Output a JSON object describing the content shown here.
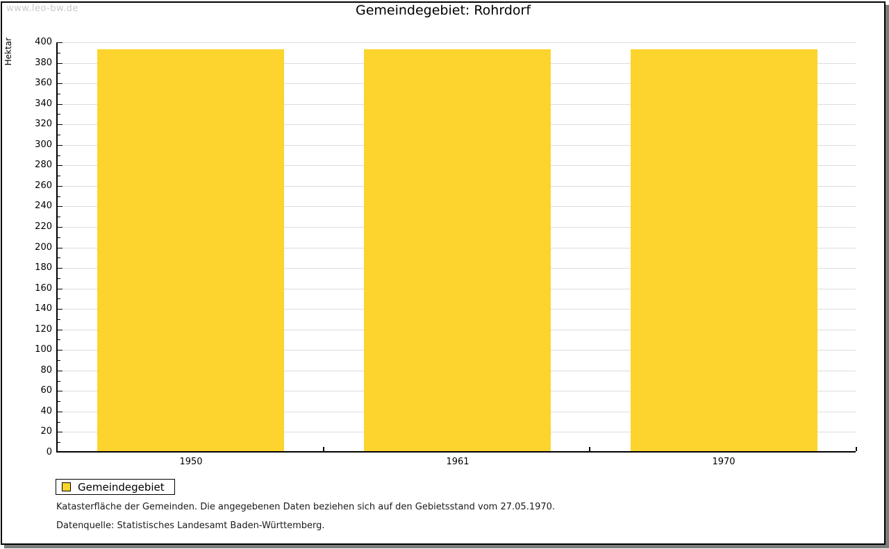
{
  "watermark": "www.leo-bw.de",
  "chart_data": {
    "type": "bar",
    "title": "Gemeindegebiet: Rohrdorf",
    "xlabel": "",
    "ylabel": "Hektar",
    "categories": [
      "1950",
      "1961",
      "1970"
    ],
    "series": [
      {
        "name": "Gemeindegebiet",
        "color": "#FCD42D",
        "values": [
          392,
          392,
          392
        ]
      }
    ],
    "ylim": [
      0,
      400
    ],
    "ytick_step": 20,
    "yminor_step": 10,
    "grid": true,
    "legend_position": "bottom-left"
  },
  "colors": {
    "bar": "#FCD42D",
    "grid": "#DCDCDC",
    "axis": "#000000",
    "watermark": "#C9C9C9",
    "frame_shadow": "#7D7D7D",
    "background": "#FFFFFF"
  },
  "footnotes": [
    "Katasterfläche der Gemeinden. Die angegebenen Daten beziehen sich auf den Gebietsstand vom 27.05.1970.",
    "Datenquelle: Statistisches Landesamt Baden-Württemberg."
  ]
}
